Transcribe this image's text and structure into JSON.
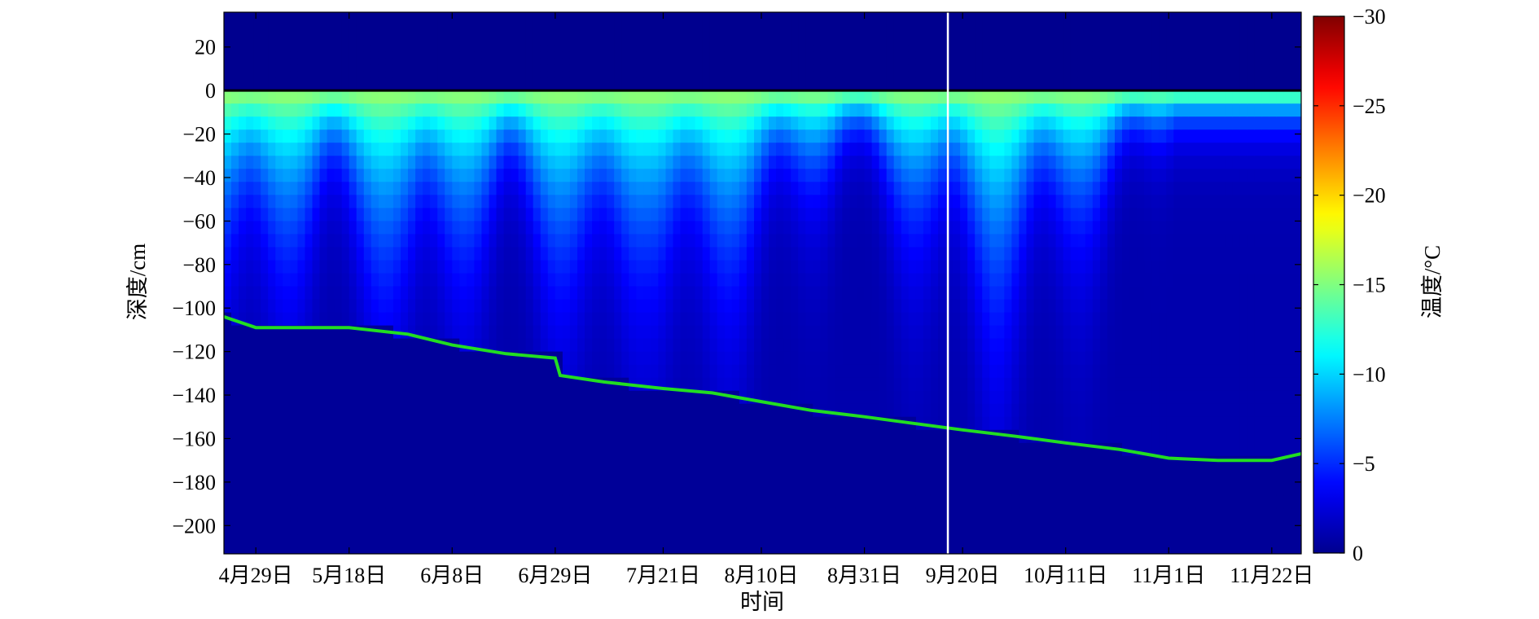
{
  "chart_data": {
    "type": "heatmap",
    "xlabel": "时间",
    "ylabel": "深度/cm",
    "colorbar_label": "温度/°C",
    "x_tick_labels": [
      "4月29日",
      "5月18日",
      "6月8日",
      "6月29日",
      "7月21日",
      "8月10日",
      "8月31日",
      "9月20日",
      "10月11日",
      "11月1日",
      "11月22日"
    ],
    "x_tick_day_of_year": [
      119,
      138,
      159,
      180,
      202,
      222,
      243,
      263,
      284,
      305,
      326
    ],
    "x_range_day_of_year": [
      112.5,
      332
    ],
    "y_ticks": [
      20,
      0,
      -20,
      -40,
      -60,
      -80,
      -100,
      -120,
      -140,
      -160,
      -180,
      -200
    ],
    "ylim": [
      -213,
      36
    ],
    "colorbar_ticks": [
      0,
      -5,
      -10,
      -15,
      -20,
      -25,
      -30
    ],
    "clim": [
      -30,
      0
    ],
    "colormap": [
      "#00008f",
      "#0000ff",
      "#0080ff",
      "#00ffff",
      "#80ff80",
      "#ffff00",
      "#ff8000",
      "#ff0000",
      "#800000"
    ],
    "surface_line": {
      "depth": 0,
      "color": "#000000"
    },
    "data_gap": {
      "day_of_year": 260,
      "color": "#ffffff"
    },
    "freezing_front": {
      "color": "#22dd22",
      "day_of_year": [
        112.5,
        119,
        130,
        138,
        150,
        159,
        170,
        180,
        181,
        190,
        202,
        212,
        222,
        232,
        243,
        253,
        263,
        274,
        284,
        295,
        305,
        315,
        326,
        332
      ],
      "depth": [
        -104,
        -109,
        -109,
        -109,
        -112,
        -117,
        -121,
        -123,
        -131,
        -134,
        -137,
        -139,
        -143,
        -147,
        -150,
        -153,
        -156,
        -159,
        -162,
        -165,
        -169,
        -170,
        -170,
        -167
      ]
    },
    "color_field": {
      "air_layer_range_cm": [
        0,
        36
      ],
      "air_min_temperature_days": [
        [
          145,
          140
        ],
        [
          132,
          200
        ],
        [
          182,
          170
        ],
        [
          252,
          260
        ]
      ],
      "cold_penetration_days": [
        [
          115,
          175
        ],
        [
          150,
          193
        ],
        [
          188,
          215
        ],
        [
          207,
          222
        ],
        [
          269,
          245
        ]
      ],
      "soil_surface_temperature_cm0": -16,
      "soil_deep_temperature": -1
    }
  }
}
